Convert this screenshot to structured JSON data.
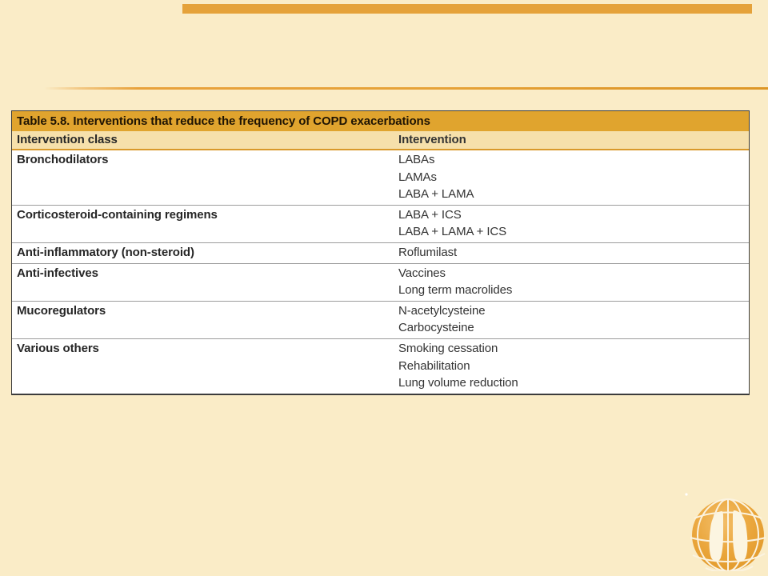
{
  "theme": {
    "background": "#FAECC7",
    "top_bar": "#E5A23A",
    "accent_line": "#E8A23C",
    "table_title_bg": "#E0A42E",
    "table_title_text": "#1F1403",
    "header_bg": "#F6E0AB",
    "header_text": "#241A0C",
    "header_rule": "#D9992B",
    "body_bg": "#FFFFFF",
    "body_text": "#333333",
    "class_text": "#262626",
    "row_divider": "#9B9B9B",
    "outer_border": "#3C3C3C",
    "logo_orange": "#E8A33C"
  },
  "table": {
    "title": "Table 5.8. Interventions that reduce the frequency of COPD exacerbations",
    "columns": [
      "Intervention class",
      "Intervention"
    ],
    "rows": [
      {
        "class": "Bronchodilators",
        "interventions": [
          "LABAs",
          "LAMAs",
          "LABA + LAMA"
        ]
      },
      {
        "class": "Corticosteroid-containing regimens",
        "interventions": [
          "LABA + ICS",
          "LABA + LAMA + ICS"
        ]
      },
      {
        "class": "Anti-inflammatory (non-steroid)",
        "interventions": [
          "Roflumilast"
        ]
      },
      {
        "class": "Anti-infectives",
        "interventions": [
          "Vaccines",
          "Long term macrolides"
        ]
      },
      {
        "class": "Mucoregulators",
        "interventions": [
          "N-acetylcysteine",
          "Carbocysteine"
        ]
      },
      {
        "class": "Various others",
        "interventions": [
          "Smoking cessation",
          "Rehabilitation",
          "Lung volume reduction"
        ]
      }
    ]
  },
  "logo": {
    "name": "GOLD globe with lungs"
  }
}
